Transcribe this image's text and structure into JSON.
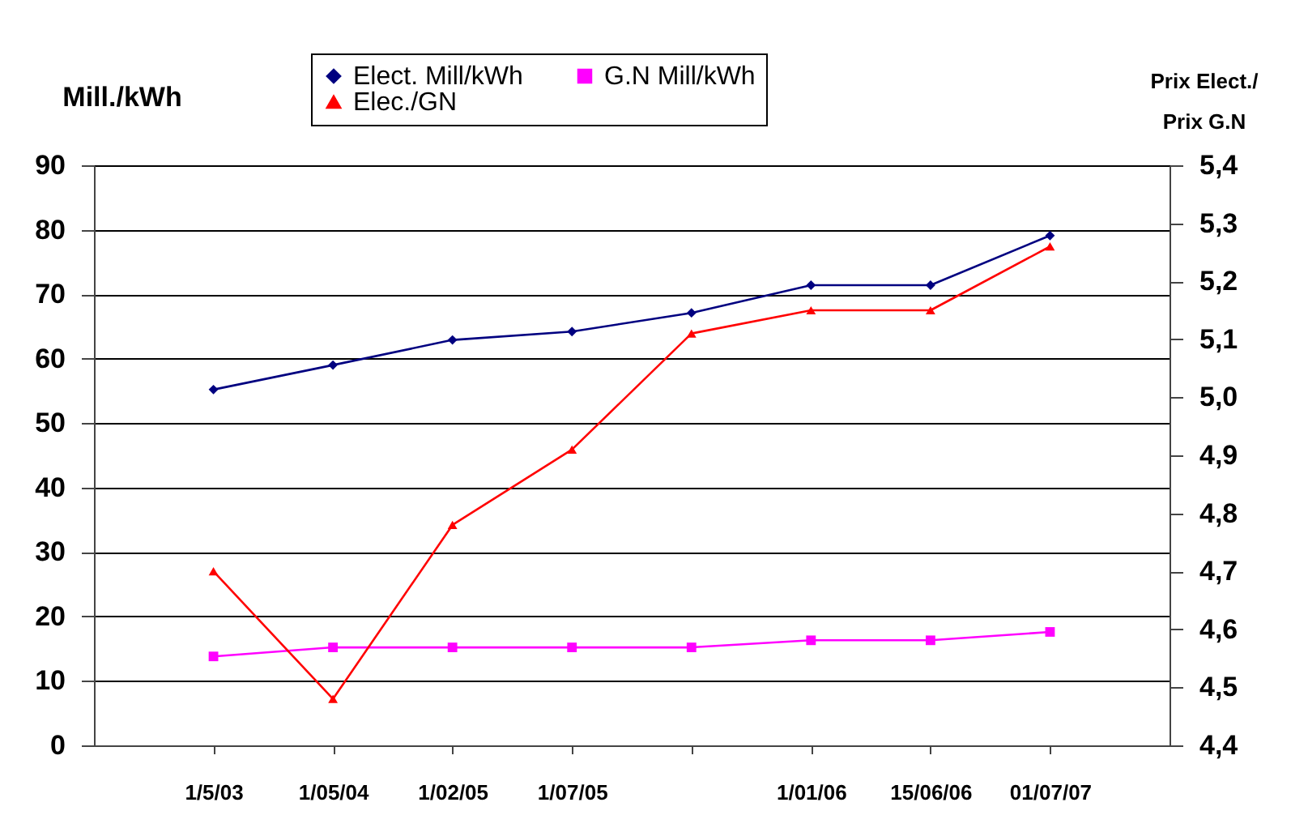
{
  "chart_data": {
    "type": "line",
    "categories": [
      "1/5/03",
      "1/05/04",
      "1/02/05",
      "1/07/05",
      null,
      "1/01/06",
      "15/06/06",
      "01/07/07"
    ],
    "series": [
      {
        "name": "Elect. Mill/kWh",
        "color": "#000080",
        "marker": "diamond",
        "values": [
          55.2,
          59.0,
          62.9,
          64.2,
          67.1,
          71.4,
          71.4,
          79.1
        ]
      },
      {
        "name": "G.N Mill/kWh",
        "color": "#ff00ff",
        "marker": "square",
        "values": [
          13.8,
          15.2,
          15.2,
          15.2,
          15.2,
          16.3,
          16.3,
          17.6
        ]
      },
      {
        "name": "Elec./GN",
        "color": "#ff0000",
        "marker": "triangle",
        "axis": "y2",
        "values": [
          4.7,
          4.48,
          4.78,
          4.91,
          5.11,
          5.15,
          5.15,
          5.26
        ]
      }
    ],
    "ylabel": "Mill./kWh",
    "y2label": "Prix  Elect./\nPrix G.N",
    "ylim": [
      0,
      90
    ],
    "yticks": [
      0,
      10,
      20,
      30,
      40,
      50,
      60,
      70,
      80,
      90
    ],
    "y2lim": [
      4.4,
      5.4
    ],
    "y2ticks": [
      {
        "value": 4.4,
        "label": "4,4"
      },
      {
        "value": 4.5,
        "label": "4,5"
      },
      {
        "value": 4.6,
        "label": "4,6"
      },
      {
        "value": 4.7,
        "label": "4,7"
      },
      {
        "value": 4.8,
        "label": "4,8"
      },
      {
        "value": 4.9,
        "label": "4,9"
      },
      {
        "value": 5.0,
        "label": "5,0"
      },
      {
        "value": 5.1,
        "label": "5,1"
      },
      {
        "value": 5.2,
        "label": "5,2"
      },
      {
        "value": 5.3,
        "label": "5,3"
      },
      {
        "value": 5.4,
        "label": "5,4"
      }
    ],
    "grid": "y",
    "legend": "top"
  }
}
